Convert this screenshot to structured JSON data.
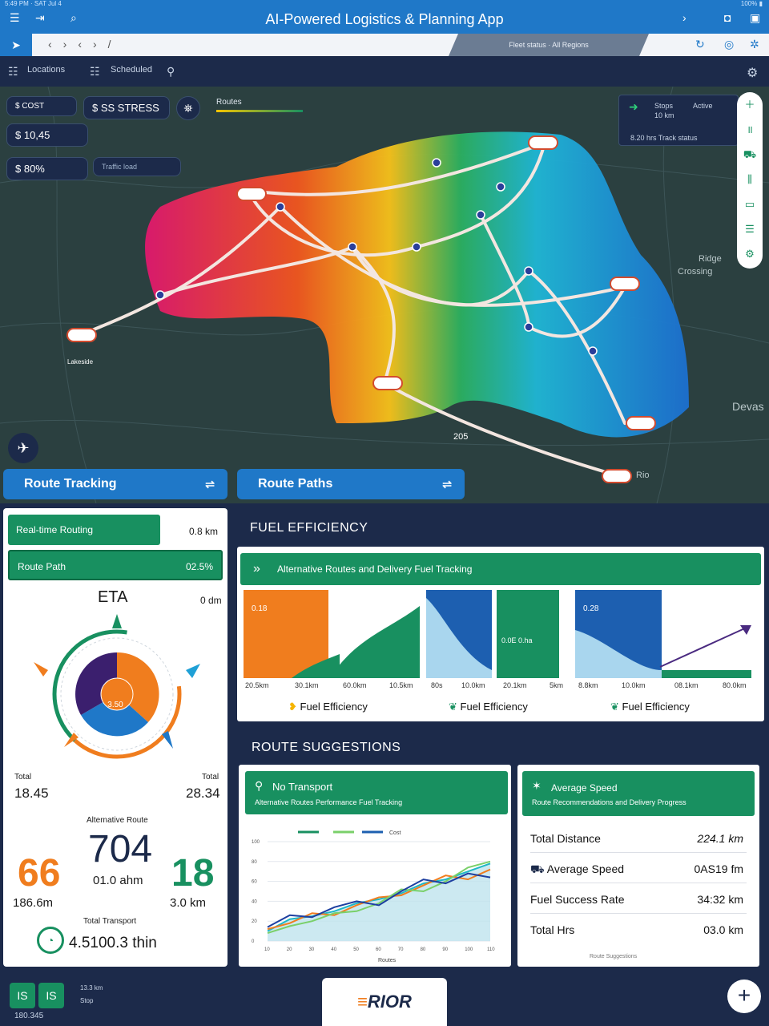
{
  "app": {
    "title": "AI-Powered Logistics & Planning App",
    "system_left": "5:49 PM · SAT Jul 4",
    "system_right": "100% ▮",
    "banner": "Fleet status · All Regions"
  },
  "subbar": {
    "item1": "Locations",
    "item2": "Scheduled"
  },
  "map": {
    "chips": {
      "cost": "$ COST",
      "stress": "$ SS STRESS",
      "distance": "$ 10,45",
      "percent": "$ 80%",
      "traffic": "Traffic load"
    },
    "legend_label": "Routes",
    "info": {
      "line1": "Stops",
      "line2": "Active",
      "line3": "10 km",
      "line4": "8.20 hrs  Track status"
    },
    "place_labels": [
      "Crossing",
      "Rio",
      "Devas",
      "Ridge",
      "205",
      "Lakeside"
    ]
  },
  "buttons": {
    "route_tracking": "Route Tracking",
    "route_paths": "Route Paths"
  },
  "left_panel": {
    "row1_label": "Real-time Routing",
    "row1_value": "0.8 km",
    "row2_label": "Route Path",
    "row2_value": "02.5%",
    "eta_title": "ETA",
    "eta_value": "0 dm",
    "donut_center": "3.50",
    "total_left_label": "Total",
    "total_left_value": "18.45",
    "total_right_label": "Total",
    "total_right_value": "28.34",
    "alt_route_label": "Alternative Route",
    "big_left": "66",
    "big_left_sub": "186.6m",
    "big_center": "704",
    "big_center_sub": "01.0 ahm",
    "big_right": "18",
    "big_right_sub": "3.0 km",
    "total_transport_label": "Total Transport",
    "total_transport_value": "4.5100.3 thin"
  },
  "fuel_efficiency": {
    "title": "FUEL EFFICIENCY",
    "bar_label": "Alternative Routes and Delivery Fuel Tracking",
    "chart_a_label": "0.18",
    "chart_b_label": "0.0E 0.ha",
    "chart_c_label": "0.28",
    "ticks": [
      "20.5km",
      "30.1km",
      "60.0km",
      "10.5km",
      "80s",
      "10.0km",
      "20.1km",
      "5km",
      "8.8km",
      "10.0km",
      "08.1km",
      "80.0km"
    ],
    "legend": [
      "Fuel Efficiency",
      "Fuel Efficiency",
      "Fuel Efficiency"
    ],
    "colors": {
      "orange": "#f07d1e",
      "green": "#189060",
      "blue": "#1d5fb0",
      "light_blue": "#a9d6ee",
      "purple": "#4a2a80"
    }
  },
  "route_suggestions": {
    "title": "ROUTE SUGGESTIONS",
    "card1_title": "No Transport",
    "card1_sub": "Alternative Routes Performance Fuel Tracking",
    "chart_legend": "Cost",
    "chart_xlabel": "Routes",
    "chart_data": {
      "type": "line",
      "categories": [
        "10",
        "20",
        "30",
        "40",
        "50",
        "60",
        "70",
        "80",
        "90",
        "100",
        "110"
      ],
      "series": [
        {
          "values": [
            10,
            22,
            25,
            30,
            38,
            42,
            48,
            58,
            62,
            70,
            78
          ]
        },
        {
          "values": [
            12,
            18,
            28,
            26,
            36,
            44,
            46,
            56,
            66,
            62,
            72
          ]
        },
        {
          "values": [
            8,
            15,
            20,
            28,
            30,
            38,
            52,
            50,
            60,
            74,
            80
          ]
        },
        {
          "values": [
            14,
            26,
            24,
            34,
            40,
            36,
            50,
            62,
            58,
            68,
            64
          ]
        }
      ],
      "ylim": [
        0,
        100
      ]
    },
    "card2_title": "Average Speed",
    "card2_sub": "Route Recommendations and Delivery Progress",
    "stats": [
      {
        "label": "Total Distance",
        "value": "224.1 km"
      },
      {
        "label": "Average Speed",
        "value": "0AS19 fm"
      },
      {
        "label": "Fuel Success Rate",
        "value": "34:32 km"
      },
      {
        "label": "Total Hrs",
        "value": "03.0 km"
      }
    ],
    "footnote": "Route Suggestions"
  },
  "footer": {
    "btn1": "IS",
    "btn2": "IS",
    "caption1": "13.3 km",
    "caption2": "Stop",
    "caption3": "180.345",
    "logo_text": "RIOR",
    "plus": "+"
  }
}
